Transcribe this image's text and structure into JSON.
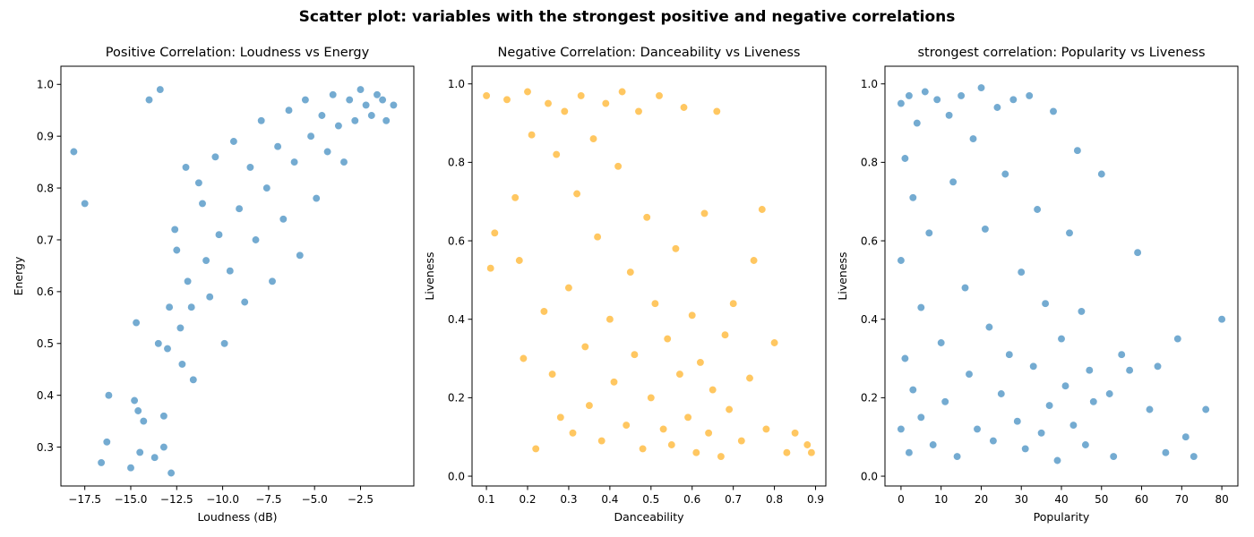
{
  "figure": {
    "suptitle": "Scatter plot: variables with the strongest positive and negative correlations"
  },
  "chart_data": [
    {
      "type": "scatter",
      "title": "Positive Correlation: Loudness vs Energy",
      "xlabel": "Loudness (dB)",
      "ylabel": "Energy",
      "xlim": [
        -18.8,
        0.4
      ],
      "ylim": [
        0.225,
        1.035
      ],
      "xticks": [
        -17.5,
        -15.0,
        -12.5,
        -10.0,
        -7.5,
        -5.0,
        -2.5
      ],
      "xtick_labels": [
        "−17.5",
        "−15.0",
        "−12.5",
        "−10.0",
        "−7.5",
        "−5.0",
        "−2.5"
      ],
      "yticks": [
        0.3,
        0.4,
        0.5,
        0.6,
        0.7,
        0.8,
        0.9,
        1.0
      ],
      "ytick_labels": [
        "0.3",
        "0.4",
        "0.5",
        "0.6",
        "0.7",
        "0.8",
        "0.9",
        "1.0"
      ],
      "color": "#1f77b4",
      "series": [
        {
          "x": [
            -18.1,
            -17.5,
            -16.6,
            -16.3,
            -16.2,
            -15.0,
            -14.8,
            -14.6,
            -14.7,
            -14.5,
            -14.3,
            -14.0,
            -13.7,
            -13.5,
            -13.4,
            -13.2,
            -13.2,
            -13.0,
            -12.9,
            -12.8,
            -12.6,
            -12.5,
            -12.3,
            -12.2,
            -12.0,
            -11.9,
            -11.7,
            -11.6,
            -11.3,
            -11.1,
            -10.9,
            -10.7,
            -10.4,
            -10.2,
            -9.9,
            -9.6,
            -9.4,
            -9.1,
            -8.8,
            -8.5,
            -8.2,
            -7.9,
            -7.6,
            -7.3,
            -7.0,
            -6.7,
            -6.4,
            -6.1,
            -5.8,
            -5.5,
            -5.2,
            -4.9,
            -4.6,
            -4.3,
            -4.0,
            -3.7,
            -3.4,
            -3.1,
            -2.8,
            -2.5,
            -2.2,
            -1.9,
            -1.6,
            -1.3,
            -1.1,
            -0.7
          ],
          "y": [
            0.87,
            0.77,
            0.27,
            0.31,
            0.4,
            0.26,
            0.39,
            0.37,
            0.54,
            0.29,
            0.35,
            0.97,
            0.28,
            0.5,
            0.99,
            0.3,
            0.36,
            0.49,
            0.57,
            0.25,
            0.72,
            0.68,
            0.53,
            0.46,
            0.84,
            0.62,
            0.57,
            0.43,
            0.81,
            0.77,
            0.66,
            0.59,
            0.86,
            0.71,
            0.5,
            0.64,
            0.89,
            0.76,
            0.58,
            0.84,
            0.7,
            0.93,
            0.8,
            0.62,
            0.88,
            0.74,
            0.95,
            0.85,
            0.67,
            0.97,
            0.9,
            0.78,
            0.94,
            0.87,
            0.98,
            0.92,
            0.85,
            0.97,
            0.93,
            0.99,
            0.96,
            0.94,
            0.98,
            0.97,
            0.93,
            0.96
          ]
        }
      ]
    },
    {
      "type": "scatter",
      "title": "Negative Correlation: Danceability vs Liveness",
      "xlabel": "Danceability",
      "ylabel": "Liveness",
      "xlim": [
        0.065,
        0.925
      ],
      "ylim": [
        -0.025,
        1.045
      ],
      "xticks": [
        0.1,
        0.2,
        0.3,
        0.4,
        0.5,
        0.6,
        0.7,
        0.8,
        0.9
      ],
      "xtick_labels": [
        "0.1",
        "0.2",
        "0.3",
        "0.4",
        "0.5",
        "0.6",
        "0.7",
        "0.8",
        "0.9"
      ],
      "yticks": [
        0.0,
        0.2,
        0.4,
        0.6,
        0.8,
        1.0
      ],
      "ytick_labels": [
        "0.0",
        "0.2",
        "0.4",
        "0.6",
        "0.8",
        "1.0"
      ],
      "color": "#ffa500",
      "series": [
        {
          "x": [
            0.1,
            0.11,
            0.12,
            0.15,
            0.17,
            0.18,
            0.19,
            0.2,
            0.21,
            0.22,
            0.24,
            0.25,
            0.26,
            0.27,
            0.28,
            0.29,
            0.3,
            0.31,
            0.32,
            0.33,
            0.34,
            0.35,
            0.36,
            0.37,
            0.38,
            0.39,
            0.4,
            0.41,
            0.42,
            0.43,
            0.44,
            0.45,
            0.46,
            0.47,
            0.48,
            0.49,
            0.5,
            0.51,
            0.52,
            0.53,
            0.54,
            0.55,
            0.56,
            0.57,
            0.58,
            0.59,
            0.6,
            0.61,
            0.62,
            0.63,
            0.64,
            0.65,
            0.66,
            0.67,
            0.68,
            0.69,
            0.7,
            0.72,
            0.74,
            0.75,
            0.77,
            0.78,
            0.8,
            0.83,
            0.85,
            0.88,
            0.89
          ],
          "y": [
            0.97,
            0.53,
            0.62,
            0.96,
            0.71,
            0.55,
            0.3,
            0.98,
            0.87,
            0.07,
            0.42,
            0.95,
            0.26,
            0.82,
            0.15,
            0.93,
            0.48,
            0.11,
            0.72,
            0.97,
            0.33,
            0.18,
            0.86,
            0.61,
            0.09,
            0.95,
            0.4,
            0.24,
            0.79,
            0.98,
            0.13,
            0.52,
            0.31,
            0.93,
            0.07,
            0.66,
            0.2,
            0.44,
            0.97,
            0.12,
            0.35,
            0.08,
            0.58,
            0.26,
            0.94,
            0.15,
            0.41,
            0.06,
            0.29,
            0.67,
            0.11,
            0.22,
            0.93,
            0.05,
            0.36,
            0.17,
            0.44,
            0.09,
            0.25,
            0.55,
            0.68,
            0.12,
            0.34,
            0.06,
            0.11,
            0.08,
            0.06
          ]
        }
      ]
    },
    {
      "type": "scatter",
      "title": "strongest correlation: Popularity vs Liveness",
      "xlabel": "Popularity",
      "ylabel": "Liveness",
      "xlim": [
        -4,
        84
      ],
      "ylim": [
        -0.025,
        1.045
      ],
      "xticks": [
        0,
        10,
        20,
        30,
        40,
        50,
        60,
        70,
        80
      ],
      "xtick_labels": [
        "0",
        "10",
        "20",
        "30",
        "40",
        "50",
        "60",
        "70",
        "80"
      ],
      "yticks": [
        0.0,
        0.2,
        0.4,
        0.6,
        0.8,
        1.0
      ],
      "ytick_labels": [
        "0.0",
        "0.2",
        "0.4",
        "0.6",
        "0.8",
        "1.0"
      ],
      "color": "#1f77b4",
      "series": [
        {
          "x": [
            0,
            0,
            0,
            1,
            1,
            2,
            2,
            3,
            3,
            4,
            5,
            5,
            6,
            7,
            8,
            9,
            10,
            11,
            12,
            13,
            14,
            15,
            16,
            17,
            18,
            19,
            20,
            21,
            22,
            23,
            24,
            25,
            26,
            27,
            28,
            29,
            30,
            31,
            32,
            33,
            34,
            35,
            36,
            37,
            38,
            39,
            40,
            41,
            42,
            43,
            44,
            45,
            46,
            47,
            48,
            50,
            52,
            53,
            55,
            57,
            59,
            62,
            64,
            66,
            69,
            71,
            73,
            76,
            80
          ],
          "y": [
            0.95,
            0.55,
            0.12,
            0.81,
            0.3,
            0.97,
            0.06,
            0.71,
            0.22,
            0.9,
            0.43,
            0.15,
            0.98,
            0.62,
            0.08,
            0.96,
            0.34,
            0.19,
            0.92,
            0.75,
            0.05,
            0.97,
            0.48,
            0.26,
            0.86,
            0.12,
            0.99,
            0.63,
            0.38,
            0.09,
            0.94,
            0.21,
            0.77,
            0.31,
            0.96,
            0.14,
            0.52,
            0.07,
            0.97,
            0.28,
            0.68,
            0.11,
            0.44,
            0.18,
            0.93,
            0.04,
            0.35,
            0.23,
            0.62,
            0.13,
            0.83,
            0.42,
            0.08,
            0.27,
            0.19,
            0.77,
            0.21,
            0.05,
            0.31,
            0.27,
            0.57,
            0.17,
            0.28,
            0.06,
            0.35,
            0.1,
            0.05,
            0.17,
            0.4
          ]
        }
      ]
    }
  ]
}
